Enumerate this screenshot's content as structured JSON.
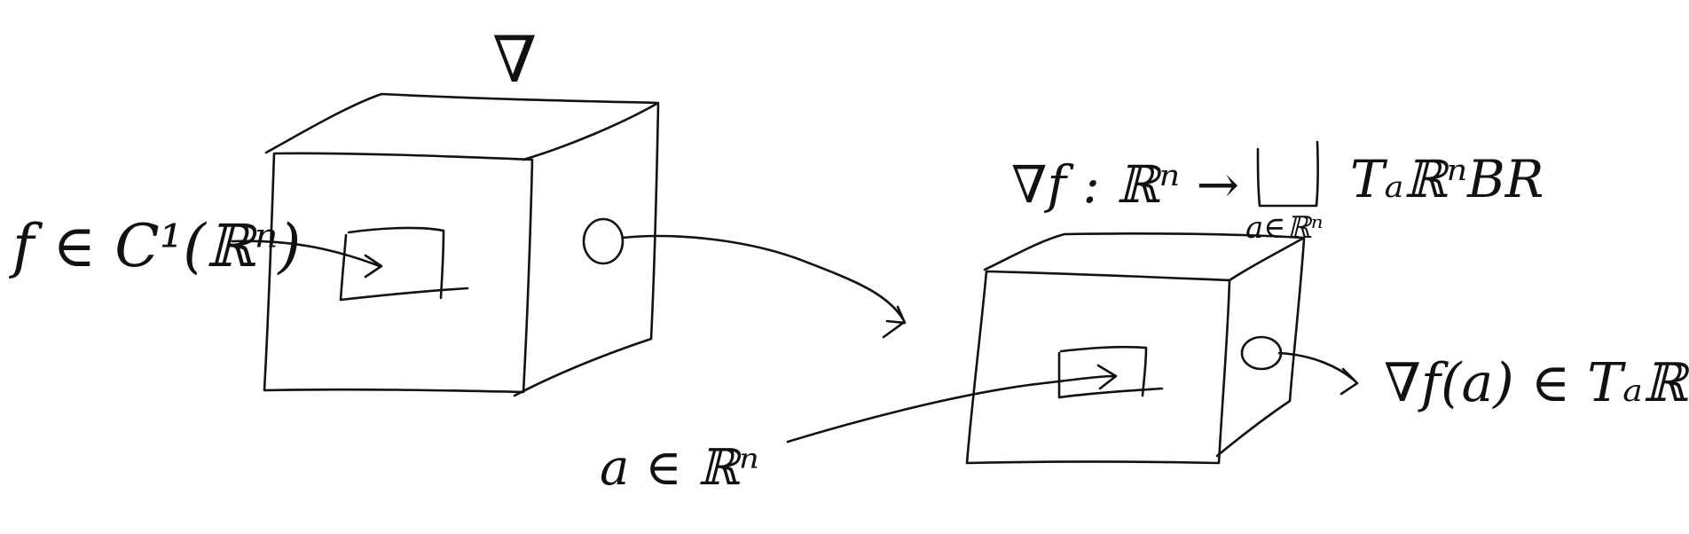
{
  "operator_symbol": "∇",
  "input_label": "f ∈ C¹(ℝⁿ)",
  "map_label": "∇f : ℝⁿ →",
  "coproduct_symbol": "⊔",
  "coproduct_index": "a∈ℝⁿ",
  "codomain_label": "TₐℝⁿBR",
  "point_label": "a ∈ ℝⁿ",
  "output_label": "∇f(a) ∈ Tₐℝⁿ"
}
